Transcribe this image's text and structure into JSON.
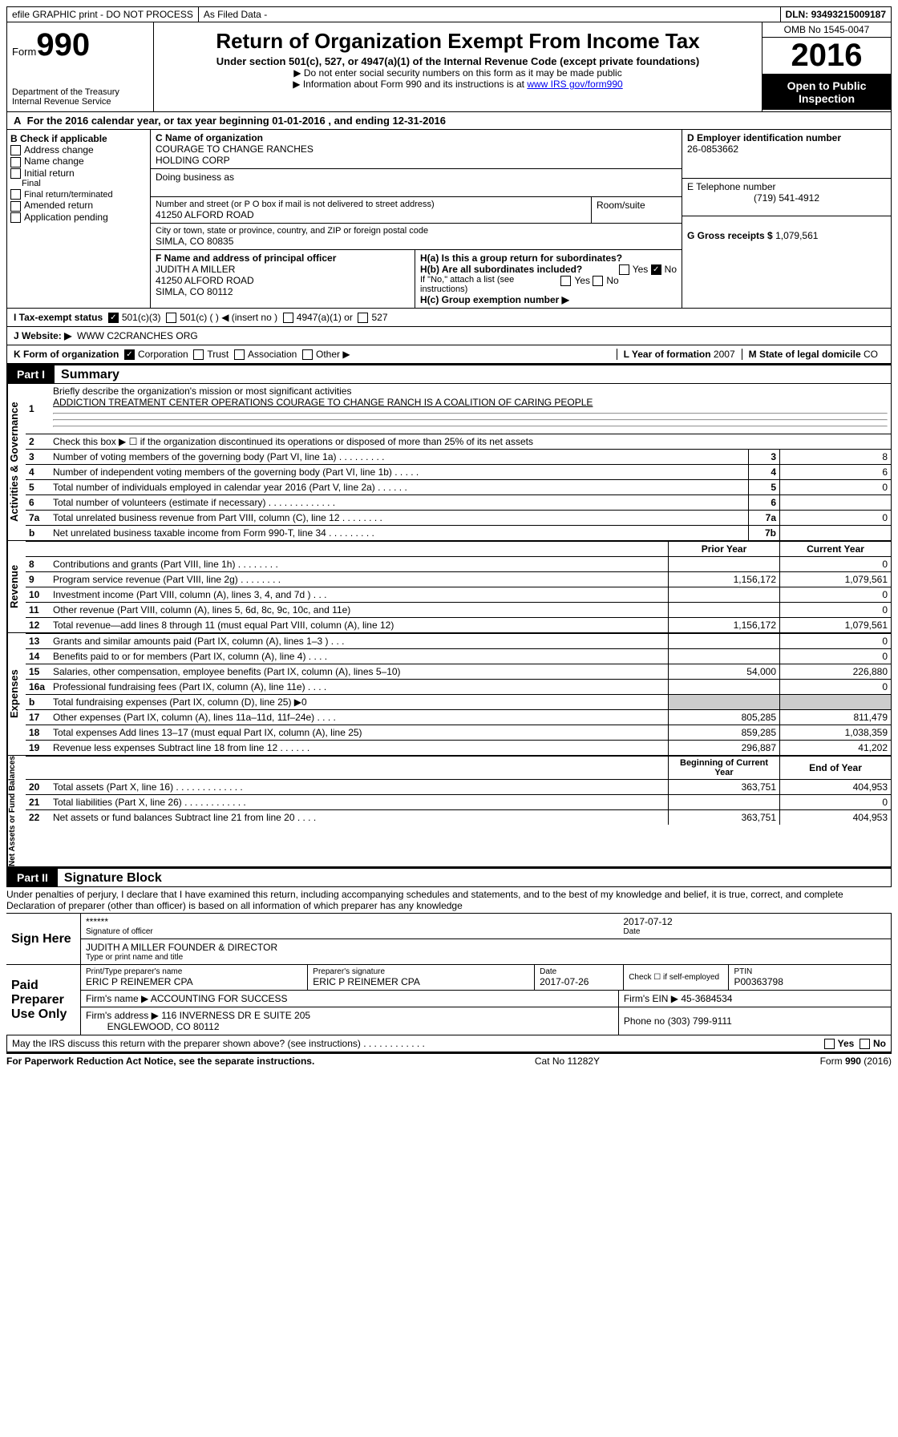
{
  "top": {
    "efile": "efile GRAPHIC print - DO NOT PROCESS",
    "asfiled": "As Filed Data -",
    "dln_label": "DLN:",
    "dln": "93493215009187"
  },
  "header": {
    "form_prefix": "Form",
    "form_num": "990",
    "dept1": "Department of the Treasury",
    "dept2": "Internal Revenue Service",
    "title": "Return of Organization Exempt From Income Tax",
    "subtitle": "Under section 501(c), 527, or 4947(a)(1) of the Internal Revenue Code (except private foundations)",
    "note1": "▶ Do not enter social security numbers on this form as it may be made public",
    "note2_pre": "▶ Information about Form 990 and its instructions is at ",
    "note2_link": "www IRS gov/form990",
    "omb": "OMB No  1545-0047",
    "year": "2016",
    "inspection": "Open to Public Inspection"
  },
  "row_a": {
    "label": "A",
    "text": "For the 2016 calendar year, or tax year beginning 01-01-2016     , and ending 12-31-2016"
  },
  "b": {
    "label": "B Check if applicable",
    "items": [
      "Address change",
      "Name change",
      "Initial return",
      "Final return/terminated",
      "Amended return",
      "Application pending"
    ],
    "c_label": "C Name of organization",
    "c_name1": "COURAGE TO CHANGE RANCHES",
    "c_name2": "HOLDING CORP",
    "dba_label": "Doing business as",
    "addr_label": "Number and street (or P O  box if mail is not delivered to street address)",
    "room_label": "Room/suite",
    "addr": "41250 ALFORD ROAD",
    "city_label": "City or town, state or province, country, and ZIP or foreign postal code",
    "city": "SIMLA, CO  80835",
    "d_label": "D Employer identification number",
    "d_val": "26-0853662",
    "e_label": "E Telephone number",
    "e_val": "(719) 541-4912",
    "g_label": "G Gross receipts $",
    "g_val": "1,079,561",
    "f_label": "F  Name and address of principal officer",
    "f_name": "JUDITH A MILLER",
    "f_addr1": "41250 ALFORD ROAD",
    "f_addr2": "SIMLA, CO  80112",
    "ha": "H(a)  Is this a group return for subordinates?",
    "hb": "H(b)  Are all subordinates included?",
    "hb_note": "If \"No,\" attach a list  (see instructions)",
    "hc": "H(c)  Group exemption number ▶",
    "yes": "Yes",
    "no": "No"
  },
  "i": {
    "label": "I   Tax-exempt status",
    "o1": "501(c)(3)",
    "o2": "501(c) (   ) ◀ (insert no )",
    "o3": "4947(a)(1) or",
    "o4": "527"
  },
  "j": {
    "label": "J   Website: ▶",
    "val": "WWW C2CRANCHES ORG"
  },
  "k": {
    "label": "K Form of organization",
    "o1": "Corporation",
    "o2": "Trust",
    "o3": "Association",
    "o4": "Other ▶",
    "l_label": "L Year of formation",
    "l_val": "2007",
    "m_label": "M State of legal domicile",
    "m_val": "CO"
  },
  "part1": {
    "tag": "Part I",
    "title": "Summary",
    "q1_label": "1",
    "q1": "Briefly describe the organization's mission or most significant activities",
    "q1_ans": "ADDICTION TREATMENT CENTER OPERATIONS  COURAGE TO CHANGE RANCH IS A COALITION OF CARING PEOPLE",
    "q2": "Check this box ▶ ☐  if the organization discontinued its operations or disposed of more than 25% of its net assets",
    "lines_gov": [
      {
        "n": "3",
        "t": "Number of voting members of the governing body (Part VI, line 1a)   .     .     .     .     .     .     .     .     .",
        "box": "3",
        "v": "8"
      },
      {
        "n": "4",
        "t": "Number of independent voting members of the governing body (Part VI, line 1b)    .     .     .     .     .",
        "box": "4",
        "v": "6"
      },
      {
        "n": "5",
        "t": "Total number of individuals employed in calendar year 2016 (Part V, line 2a)    .     .     .     .     .     .",
        "box": "5",
        "v": "0"
      },
      {
        "n": "6",
        "t": "Total number of volunteers (estimate if necessary)    .     .     .     .     .     .     .     .     .     .     .     .     .",
        "box": "6",
        "v": ""
      },
      {
        "n": "7a",
        "t": "Total unrelated business revenue from Part VIII, column (C), line 12    .     .     .     .     .     .     .     .",
        "box": "7a",
        "v": "0"
      },
      {
        "n": "b",
        "t": "Net unrelated business taxable income from Form 990-T, line 34    .     .     .     .     .     .     .     .     .",
        "box": "7b",
        "v": ""
      }
    ],
    "prior_year": "Prior Year",
    "current_year": "Current Year",
    "rev": [
      {
        "n": "8",
        "t": "Contributions and grants (Part VIII, line 1h)    .     .     .     .     .     .     .     .",
        "p": "",
        "c": "0"
      },
      {
        "n": "9",
        "t": "Program service revenue (Part VIII, line 2g)     .     .     .     .     .     .     .     .",
        "p": "1,156,172",
        "c": "1,079,561"
      },
      {
        "n": "10",
        "t": "Investment income (Part VIII, column (A), lines 3, 4, and 7d )    .     .     .",
        "p": "",
        "c": "0"
      },
      {
        "n": "11",
        "t": "Other revenue (Part VIII, column (A), lines 5, 6d, 8c, 9c, 10c, and 11e)",
        "p": "",
        "c": "0"
      },
      {
        "n": "12",
        "t": "Total revenue—add lines 8 through 11 (must equal Part VIII, column (A), line 12)",
        "p": "1,156,172",
        "c": "1,079,561"
      }
    ],
    "exp": [
      {
        "n": "13",
        "t": "Grants and similar amounts paid (Part IX, column (A), lines 1–3 )    .     .     .",
        "p": "",
        "c": "0"
      },
      {
        "n": "14",
        "t": "Benefits paid to or for members (Part IX, column (A), line 4)    .     .     .     .",
        "p": "",
        "c": "0"
      },
      {
        "n": "15",
        "t": "Salaries, other compensation, employee benefits (Part IX, column (A), lines 5–10)",
        "p": "54,000",
        "c": "226,880"
      },
      {
        "n": "16a",
        "t": "Professional fundraising fees (Part IX, column (A), line 11e)    .     .     .     .",
        "p": "",
        "c": "0"
      },
      {
        "n": "b",
        "t": "Total fundraising expenses (Part IX, column (D), line 25) ▶0",
        "p": "dark",
        "c": "dark"
      },
      {
        "n": "17",
        "t": "Other expenses (Part IX, column (A), lines 11a–11d, 11f–24e)    .     .     .     .",
        "p": "805,285",
        "c": "811,479"
      },
      {
        "n": "18",
        "t": "Total expenses  Add lines 13–17 (must equal Part IX, column (A), line 25)",
        "p": "859,285",
        "c": "1,038,359"
      },
      {
        "n": "19",
        "t": "Revenue less expenses  Subtract line 18 from line 12    .     .     .     .     .     .",
        "p": "296,887",
        "c": "41,202"
      }
    ],
    "boy": "Beginning of Current Year",
    "eoy": "End of Year",
    "net": [
      {
        "n": "20",
        "t": "Total assets (Part X, line 16)    .     .     .     .     .     .     .     .     .     .     .     .     .",
        "p": "363,751",
        "c": "404,953"
      },
      {
        "n": "21",
        "t": "Total liabilities (Part X, line 26)    .     .     .     .     .     .     .     .     .     .     .     .",
        "p": "",
        "c": "0"
      },
      {
        "n": "22",
        "t": "Net assets or fund balances  Subtract line 21 from line 20    .     .     .     .",
        "p": "363,751",
        "c": "404,953"
      }
    ],
    "side_gov": "Activities & Governance",
    "side_rev": "Revenue",
    "side_exp": "Expenses",
    "side_net": "Net Assets or Fund Balances"
  },
  "part2": {
    "tag": "Part II",
    "title": "Signature Block",
    "perjury": "Under penalties of perjury, I declare that I have examined this return, including accompanying schedules and statements, and to the best of my knowledge and belief, it is true, correct, and complete  Declaration of preparer (other than officer) is based on all information of which preparer has any knowledge",
    "sign_here": "Sign Here",
    "stars": "******",
    "sig_officer": "Signature of officer",
    "sig_date": "2017-07-12",
    "date_label": "Date",
    "officer_name": "JUDITH A MILLER  FOUNDER & DIRECTOR",
    "type_print": "Type or print name and title",
    "paid": "Paid Preparer Use Only",
    "prep_name_label": "Print/Type preparer's name",
    "prep_name": "ERIC P REINEMER CPA",
    "prep_sig_label": "Preparer's signature",
    "prep_sig": "ERIC P REINEMER CPA",
    "prep_date_label": "Date",
    "prep_date": "2017-07-26",
    "check_self": "Check ☐ if self-employed",
    "ptin_label": "PTIN",
    "ptin": "P00363798",
    "firm_label": "Firm's name      ▶",
    "firm": "ACCOUNTING FOR SUCCESS",
    "firm_ein_label": "Firm's EIN ▶",
    "firm_ein": "45-3684534",
    "firm_addr_label": "Firm's address ▶",
    "firm_addr1": "116 INVERNESS DR E SUITE 205",
    "firm_addr2": "ENGLEWOOD, CO  80112",
    "phone_label": "Phone no",
    "phone": "(303) 799-9111",
    "may_irs": "May the IRS discuss this return with the preparer shown above? (see instructions)    .     .     .     .     .     .     .     .     .     .     .     .",
    "yes": "Yes",
    "no": "No"
  },
  "footer": {
    "left": "For Paperwork Reduction Act Notice, see the separate instructions.",
    "mid": "Cat  No  11282Y",
    "right_a": "Form ",
    "right_b": "990",
    "right_c": " (2016)"
  }
}
